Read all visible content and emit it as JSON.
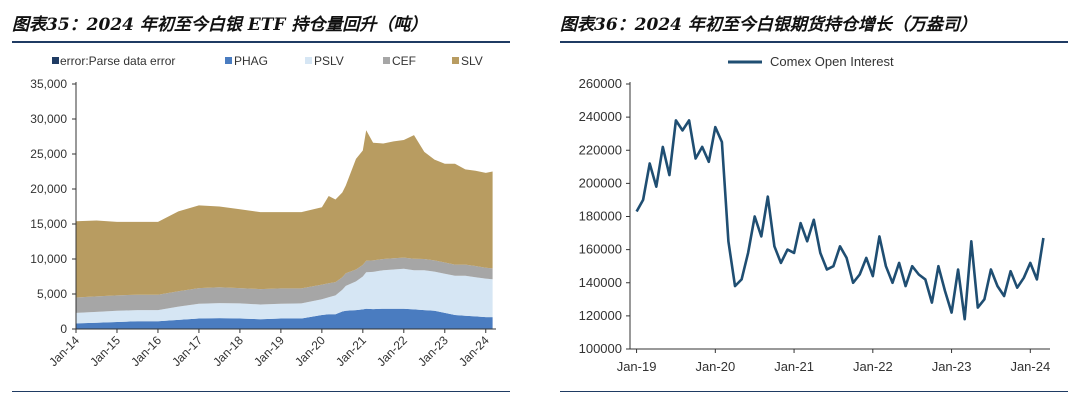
{
  "left_panel": {
    "title": "图表35：2024 年初至今白银 ETF 持仓量回升（吨）"
  },
  "right_panel": {
    "title": "图表36：2024 年初至今白银期货持仓增长（万盎司）"
  },
  "colors": {
    "rule": "#1f3b63",
    "error": "#1f3b63",
    "PHAG": "#4a7cc0",
    "PSLV": "#d6e6f4",
    "CEF": "#a6a6a6",
    "SLV": "#b89c61",
    "comex": "#1f4e72"
  },
  "chart_data": [
    {
      "type": "area",
      "stacked": true,
      "x": [
        "2014-01",
        "2014-07",
        "2015-01",
        "2015-07",
        "2016-01",
        "2016-07",
        "2017-01",
        "2017-07",
        "2018-01",
        "2018-07",
        "2019-01",
        "2019-07",
        "2020-01",
        "2020-03",
        "2020-05",
        "2020-07",
        "2020-08",
        "2020-11",
        "2021-01",
        "2021-02",
        "2021-04",
        "2021-07",
        "2021-10",
        "2022-01",
        "2022-04",
        "2022-07",
        "2022-10",
        "2023-01",
        "2023-04",
        "2023-07",
        "2023-10",
        "2024-01",
        "2024-03"
      ],
      "x_ticks": [
        "Jan-14",
        "Jan-15",
        "Jan-16",
        "Jan-17",
        "Jan-18",
        "Jan-19",
        "Jan-20",
        "Jan-21",
        "Jan-22",
        "Jan-23",
        "Jan-24"
      ],
      "y_ticks": [
        "0",
        "5,000",
        "10,000",
        "15,000",
        "20,000",
        "25,000",
        "30,000",
        "35,000"
      ],
      "ylim": [
        0,
        35000
      ],
      "legend_position": "top",
      "series": [
        {
          "name": "error:Parse data error",
          "values": [
            0,
            0,
            0,
            0,
            0,
            0,
            0,
            0,
            0,
            0,
            0,
            0,
            0,
            0,
            0,
            0,
            0,
            0,
            0,
            0,
            0,
            0,
            0,
            0,
            0,
            0,
            0,
            0,
            0,
            0,
            0,
            0,
            0
          ]
        },
        {
          "name": "PHAG",
          "values": [
            800,
            900,
            1000,
            1100,
            1100,
            1300,
            1500,
            1550,
            1500,
            1400,
            1500,
            1500,
            2000,
            2100,
            2100,
            2500,
            2600,
            2700,
            2800,
            2900,
            2850,
            2900,
            2900,
            2900,
            2800,
            2700,
            2600,
            2300,
            2000,
            1900,
            1800,
            1700,
            1700
          ]
        },
        {
          "name": "PSLV",
          "values": [
            1500,
            1550,
            1600,
            1600,
            1600,
            1900,
            2100,
            2150,
            2150,
            2100,
            2100,
            2150,
            2250,
            2450,
            2700,
            3100,
            3550,
            4100,
            4700,
            5200,
            5300,
            5500,
            5600,
            5700,
            5600,
            5700,
            5600,
            5600,
            5600,
            5700,
            5600,
            5500,
            5400
          ]
        },
        {
          "name": "CEF",
          "values": [
            2200,
            2200,
            2200,
            2200,
            2200,
            2200,
            2250,
            2250,
            2200,
            2200,
            2200,
            2150,
            2100,
            2000,
            1900,
            1800,
            1800,
            1700,
            1650,
            1650,
            1650,
            1600,
            1600,
            1600,
            1650,
            1600,
            1600,
            1600,
            1600,
            1600,
            1600,
            1550,
            1550
          ]
        },
        {
          "name": "SLV",
          "values": [
            10900,
            10850,
            10500,
            10400,
            10400,
            11400,
            11800,
            11550,
            11250,
            11000,
            10900,
            10900,
            11050,
            12450,
            11800,
            12100,
            12550,
            15800,
            16350,
            18650,
            16800,
            16500,
            16700,
            16800,
            17650,
            15300,
            14400,
            14100,
            14400,
            13600,
            13600,
            13550,
            13850
          ]
        }
      ]
    },
    {
      "type": "line",
      "x_ticks": [
        "Jan-19",
        "Jan-20",
        "Jan-21",
        "Jan-22",
        "Jan-23",
        "Jan-24"
      ],
      "y_ticks": [
        "100000",
        "120000",
        "140000",
        "160000",
        "180000",
        "200000",
        "220000",
        "240000",
        "260000"
      ],
      "ylim": [
        100000,
        260000
      ],
      "legend_position": "top",
      "series": [
        {
          "name": "Comex Open Interest",
          "x": [
            "2019-01",
            "2019-02",
            "2019-03",
            "2019-04",
            "2019-05",
            "2019-06",
            "2019-07",
            "2019-08",
            "2019-09",
            "2019-10",
            "2019-11",
            "2019-12",
            "2020-01",
            "2020-02",
            "2020-03",
            "2020-04",
            "2020-05",
            "2020-06",
            "2020-07",
            "2020-08",
            "2020-09",
            "2020-10",
            "2020-11",
            "2020-12",
            "2021-01",
            "2021-02",
            "2021-03",
            "2021-04",
            "2021-05",
            "2021-06",
            "2021-07",
            "2021-08",
            "2021-09",
            "2021-10",
            "2021-11",
            "2021-12",
            "2022-01",
            "2022-02",
            "2022-03",
            "2022-04",
            "2022-05",
            "2022-06",
            "2022-07",
            "2022-08",
            "2022-09",
            "2022-10",
            "2022-11",
            "2022-12",
            "2023-01",
            "2023-02",
            "2023-03",
            "2023-04",
            "2023-05",
            "2023-06",
            "2023-07",
            "2023-08",
            "2023-09",
            "2023-10",
            "2023-11",
            "2023-12",
            "2024-01",
            "2024-02",
            "2024-03"
          ],
          "values": [
            183000,
            190000,
            212000,
            198000,
            222000,
            205000,
            238000,
            232000,
            238000,
            215000,
            222000,
            213000,
            234000,
            225000,
            165000,
            138000,
            142000,
            158000,
            180000,
            168000,
            192000,
            162000,
            152000,
            160000,
            158000,
            176000,
            165000,
            178000,
            158000,
            148000,
            150000,
            162000,
            155000,
            140000,
            145000,
            155000,
            144000,
            168000,
            150000,
            140000,
            152000,
            138000,
            150000,
            145000,
            142000,
            128000,
            150000,
            135000,
            122000,
            148000,
            118000,
            165000,
            125000,
            130000,
            148000,
            138000,
            132000,
            147000,
            137000,
            143000,
            152000,
            142000,
            167000
          ]
        }
      ]
    }
  ]
}
